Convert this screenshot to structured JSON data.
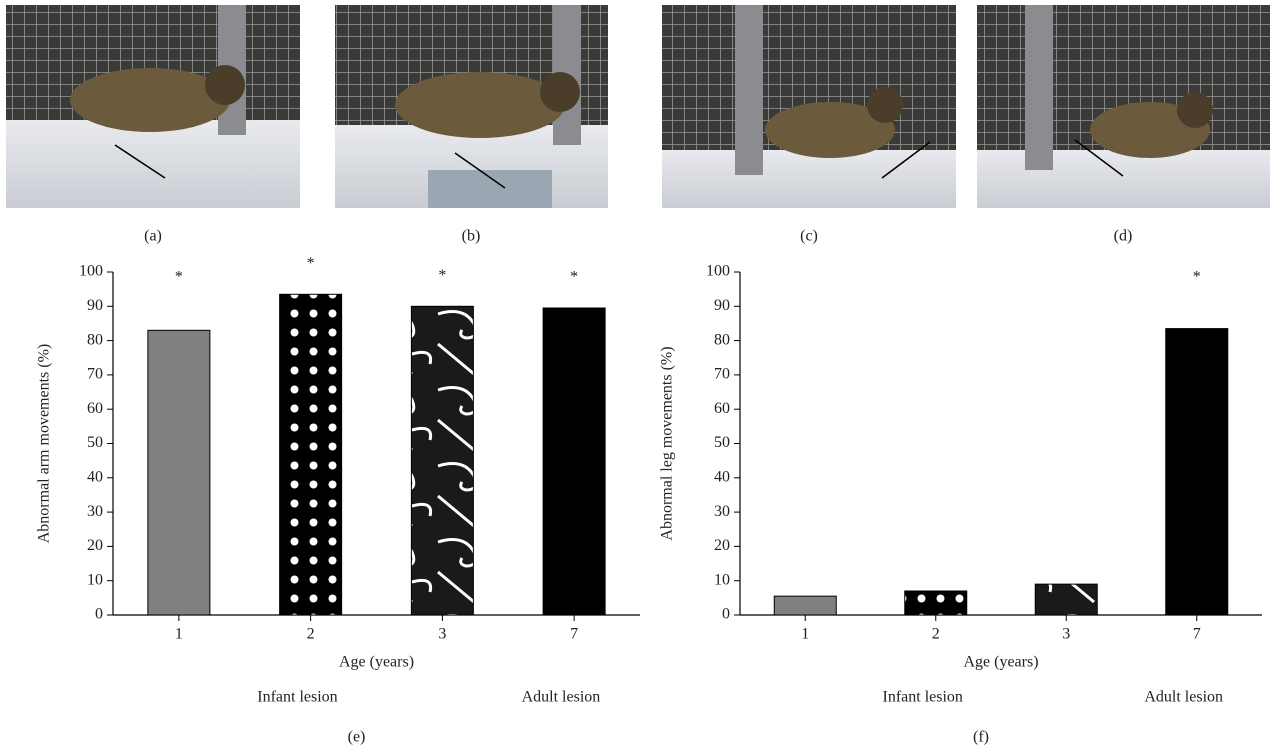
{
  "photo_labels": [
    "(a)",
    "(b)",
    "(c)",
    "(d)"
  ],
  "chart_data": [
    {
      "type": "bar",
      "panel_label": "(e)",
      "ylabel": "Abnormal arm movements (%)",
      "xlabel": "Age (years)",
      "categories": [
        "1",
        "2",
        "3",
        "7"
      ],
      "values": [
        83,
        93.5,
        90,
        89.5
      ],
      "colors": [
        "#808080",
        "#000000",
        "#1a1a1a",
        "#000000"
      ],
      "patterns": [
        "solid",
        "dots",
        "swirls",
        "solid"
      ],
      "annotations": [
        "*",
        "*",
        "*",
        "*"
      ],
      "group_labels": [
        "Infant lesion",
        "Adult lesion"
      ],
      "ylim": [
        0,
        100
      ],
      "yticks": [
        0,
        10,
        20,
        30,
        40,
        50,
        60,
        70,
        80,
        90,
        100
      ]
    },
    {
      "type": "bar",
      "panel_label": "(f)",
      "ylabel": "Abnormal leg movements (%)",
      "xlabel": "Age (years)",
      "categories": [
        "1",
        "2",
        "3",
        "7"
      ],
      "values": [
        5.5,
        7,
        9,
        83.5
      ],
      "colors": [
        "#808080",
        "#000000",
        "#1a1a1a",
        "#000000"
      ],
      "patterns": [
        "solid",
        "dots",
        "swirls",
        "solid"
      ],
      "annotations": [
        null,
        null,
        null,
        "*"
      ],
      "group_labels": [
        "Infant lesion",
        "Adult lesion"
      ],
      "ylim": [
        0,
        100
      ],
      "yticks": [
        0,
        10,
        20,
        30,
        40,
        50,
        60,
        70,
        80,
        90,
        100
      ]
    }
  ]
}
